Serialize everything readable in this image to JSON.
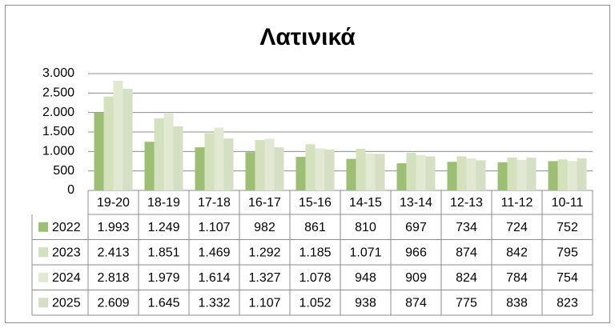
{
  "chart_data": {
    "type": "bar",
    "title": "Λατινικά",
    "categories": [
      "19-20",
      "18-19",
      "17-18",
      "16-17",
      "15-16",
      "14-15",
      "13-14",
      "12-13",
      "11-12",
      "10-11"
    ],
    "series": [
      {
        "name": "2022",
        "color": "#9dbf73",
        "values": [
          1993,
          1249,
          1107,
          982,
          861,
          810,
          697,
          734,
          724,
          752
        ],
        "value_labels": [
          "1.993",
          "1.249",
          "1.107",
          "982",
          "861",
          "810",
          "697",
          "734",
          "724",
          "752"
        ]
      },
      {
        "name": "2023",
        "color": "#d3e1bd",
        "values": [
          2413,
          1851,
          1469,
          1292,
          1185,
          1071,
          966,
          874,
          842,
          795
        ],
        "value_labels": [
          "2.413",
          "1.851",
          "1.469",
          "1.292",
          "1.185",
          "1.071",
          "966",
          "874",
          "842",
          "795"
        ]
      },
      {
        "name": "2024",
        "color": "#e1e9d2",
        "values": [
          2818,
          1979,
          1614,
          1327,
          1078,
          948,
          909,
          824,
          784,
          754
        ],
        "value_labels": [
          "2.818",
          "1.979",
          "1.614",
          "1.327",
          "1.078",
          "948",
          "909",
          "824",
          "784",
          "754"
        ]
      },
      {
        "name": "2025",
        "color": "#d5dfc4",
        "values": [
          2609,
          1645,
          1332,
          1107,
          1052,
          938,
          874,
          775,
          838,
          823
        ],
        "value_labels": [
          "2.609",
          "1.645",
          "1.332",
          "1.107",
          "1.052",
          "938",
          "874",
          "775",
          "838",
          "823"
        ]
      }
    ],
    "ylim": [
      0,
      3000
    ],
    "yticks": [
      0,
      500,
      {
        "value": 1000,
        "label": "1.000"
      },
      {
        "value": 1500,
        "label": "1.500"
      },
      {
        "value": 2000,
        "label": "2.000"
      },
      {
        "value": 2500,
        "label": "2.500"
      },
      {
        "value": 3000,
        "label": "3.000"
      }
    ],
    "grid": true,
    "data_table": true
  }
}
